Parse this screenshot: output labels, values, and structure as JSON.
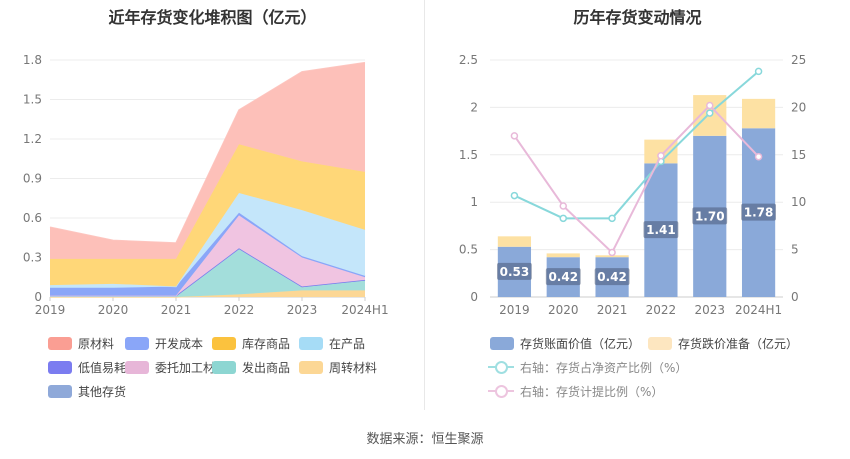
{
  "footer": "数据来源：恒生聚源",
  "chart_data": [
    {
      "type": "area",
      "stacked": true,
      "title": "近年存货变化堆积图（亿元）",
      "categories": [
        "2019",
        "2020",
        "2021",
        "2022",
        "2023",
        "2024H1"
      ],
      "ylim": [
        0,
        1.8
      ],
      "yticks": [
        "0",
        "0.3",
        "0.6",
        "0.9",
        "1.2",
        "1.5",
        "1.8"
      ],
      "grid": true,
      "legend_position": "bottom",
      "series": [
        {
          "name": "周转材料",
          "color": "#fcd795",
          "values": [
            0.0,
            0.0,
            0.0,
            0.02,
            0.05,
            0.05
          ]
        },
        {
          "name": "发出商品",
          "color": "#a3dedb",
          "values": [
            0.01,
            0.01,
            0.01,
            0.35,
            0.03,
            0.08
          ]
        },
        {
          "name": "其他存货",
          "color": "#8fa9d9",
          "values": [
            0.0,
            0.0,
            0.0,
            0.0,
            0.0,
            0.0
          ]
        },
        {
          "name": "低值易耗品",
          "color": "#7b7cf0",
          "values": [
            0.0,
            0.0,
            0.0,
            0.0,
            0.0,
            0.0
          ]
        },
        {
          "name": "委托加工材料",
          "color": "#f0c4e1",
          "values": [
            0.0,
            0.0,
            0.0,
            0.25,
            0.22,
            0.02
          ]
        },
        {
          "name": "开发成本",
          "color": "#8aa6f8",
          "values": [
            0.06,
            0.06,
            0.07,
            0.02,
            0.01,
            0.01
          ]
        },
        {
          "name": "在产品",
          "color": "#c4e6fa",
          "values": [
            0.02,
            0.03,
            0.0,
            0.15,
            0.35,
            0.35
          ]
        },
        {
          "name": "库存商品",
          "color": "#ffd778",
          "values": [
            0.2,
            0.19,
            0.21,
            0.37,
            0.37,
            0.44
          ]
        },
        {
          "name": "原材料",
          "color": "#fdc0b9",
          "values": [
            0.24,
            0.14,
            0.12,
            0.26,
            0.68,
            0.83
          ]
        }
      ],
      "legend": [
        {
          "name": "原材料",
          "color": "#fa9e93"
        },
        {
          "name": "开发成本",
          "color": "#8aa6f8"
        },
        {
          "name": "库存商品",
          "color": "#fbc23e"
        },
        {
          "name": "在产品",
          "color": "#a6dcf6"
        },
        {
          "name": "低值易耗品",
          "color": "#7b7cf0"
        },
        {
          "name": "委托加工材料",
          "color": "#e7b6d8"
        },
        {
          "name": "发出商品",
          "color": "#8dd6d2"
        },
        {
          "name": "周转材料",
          "color": "#fcd795"
        },
        {
          "name": "其他存货",
          "color": "#8fa9d9"
        }
      ]
    },
    {
      "type": "bar",
      "stacked": true,
      "title": "历年存货变动情况",
      "categories": [
        "2019",
        "2020",
        "2021",
        "2022",
        "2023",
        "2024H1"
      ],
      "ylim": [
        0,
        2.5
      ],
      "yticks": [
        "0",
        "0.5",
        "1",
        "1.5",
        "2",
        "2.5"
      ],
      "y2lim": [
        0,
        25
      ],
      "y2ticks": [
        "0",
        "5",
        "10",
        "15",
        "20",
        "25"
      ],
      "grid": true,
      "legend_position": "bottom",
      "series": [
        {
          "name": "存货账面价值（亿元）",
          "kind": "bar",
          "color": "#8aa9d9",
          "values": [
            0.53,
            0.42,
            0.42,
            1.41,
            1.7,
            1.78
          ],
          "labels": [
            "0.53",
            "0.42",
            "0.42",
            "1.41",
            "1.70",
            "1.78"
          ]
        },
        {
          "name": "存货跌价准备（亿元）",
          "kind": "bar",
          "color": "#fde1a3",
          "values": [
            0.11,
            0.04,
            0.02,
            0.25,
            0.43,
            0.31
          ]
        },
        {
          "name": "右轴：存货占净资产比例（%）",
          "kind": "line",
          "axis": "right",
          "color": "#88d8db",
          "values": [
            10.7,
            8.3,
            8.3,
            14.3,
            19.4,
            23.8
          ]
        },
        {
          "name": "右轴：存货计提比例（%）",
          "kind": "line",
          "axis": "right",
          "color": "#e8b9d9",
          "values": [
            17.0,
            9.6,
            4.7,
            14.9,
            20.2,
            14.8
          ]
        }
      ],
      "legend_colors": {
        "bar1": "#8aa9d9",
        "bar2": "#fde6c0",
        "line1": "#9fdfe1",
        "line2": "#edc5df"
      }
    }
  ]
}
